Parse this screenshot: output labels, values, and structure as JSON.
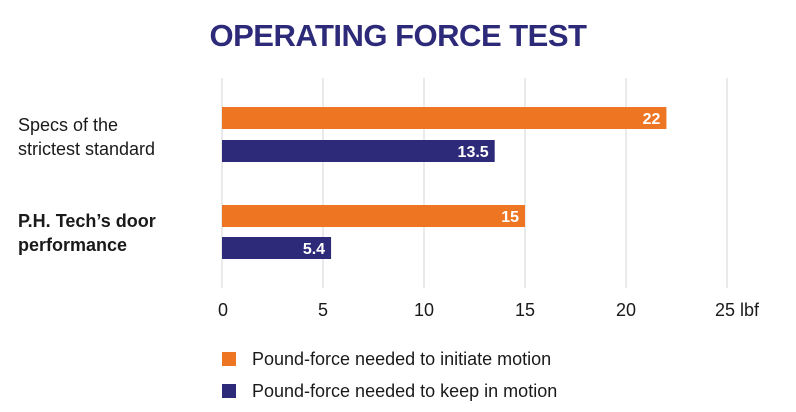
{
  "chart_data": {
    "type": "bar",
    "orientation": "horizontal",
    "title": "OPERATING FORCE TEST",
    "categories": [
      {
        "line1": "Specs of the",
        "line2": "strictest standard",
        "bold": false
      },
      {
        "line1": "P.H. Tech’s door",
        "line2": "performance",
        "bold": true
      }
    ],
    "series": [
      {
        "name": "Pound-force needed to initiate motion",
        "color": "#ee7623",
        "values": [
          22,
          15
        ],
        "labels": [
          "22",
          "15"
        ]
      },
      {
        "name": "Pound-force needed to keep in motion",
        "color": "#2e2a7a",
        "values": [
          13.5,
          5.4
        ],
        "labels": [
          "13.5",
          "5.4"
        ]
      }
    ],
    "xlim": [
      0,
      25
    ],
    "ticks": [
      0,
      5,
      10,
      15,
      20,
      25
    ],
    "tick_labels": [
      "0",
      "5",
      "10",
      "15",
      "20",
      "25 lbf"
    ],
    "grid": true,
    "xlabel": "",
    "ylabel": ""
  }
}
